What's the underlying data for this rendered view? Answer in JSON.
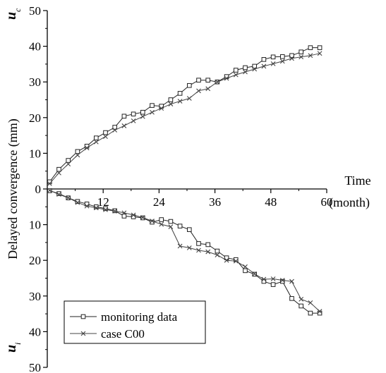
{
  "chart_data": {
    "type": "line",
    "ylabel": "Delayed convergence (mm)",
    "xlabel_line1": "Time",
    "xlabel_line2": "(month)",
    "upper_axis_symbol": "u",
    "upper_axis_subscript": "c",
    "lower_axis_symbol": "u",
    "lower_axis_subscript": "i",
    "xlim": [
      0,
      60
    ],
    "x_ticks": [
      12,
      24,
      36,
      48,
      60
    ],
    "x_tick_labels": [
      "12",
      "24",
      "36",
      "48",
      "60"
    ],
    "y_upper_ticks": [
      0,
      10,
      20,
      30,
      40,
      50
    ],
    "y_upper_labels": [
      "0",
      "10",
      "20",
      "30",
      "40",
      "50"
    ],
    "y_lower_ticks": [
      10,
      20,
      30,
      40,
      50
    ],
    "y_lower_labels": [
      "10",
      "20",
      "30",
      "40",
      "50"
    ],
    "legend_position": "bottom-left",
    "series": [
      {
        "name": "monitoring data",
        "panel": "upper",
        "marker": "square",
        "x": [
          0.5,
          2.5,
          4.5,
          6.5,
          8.5,
          10.5,
          12.5,
          14.5,
          16.5,
          18.5,
          20.5,
          22.5,
          24.5,
          26.5,
          28.5,
          30.5,
          32.5,
          34.5,
          36.5,
          38.5,
          40.5,
          42.5,
          44.5,
          46.5,
          48.5,
          50.5,
          52.5,
          54.5,
          56.5,
          58.5
        ],
        "values": [
          2,
          5.5,
          8,
          10.5,
          12,
          14.3,
          15.8,
          17.3,
          20.4,
          21,
          21.5,
          23.4,
          23.2,
          25,
          26.8,
          29,
          30.5,
          30.5,
          30,
          31.5,
          33.3,
          34,
          34.4,
          36.3,
          37,
          37.1,
          37.4,
          38.4,
          39.6,
          39.6
        ]
      },
      {
        "name": "case C00",
        "panel": "upper",
        "marker": "x",
        "x": [
          0.5,
          2.5,
          4.5,
          6.5,
          8.5,
          10.5,
          12.5,
          14.5,
          16.5,
          18.5,
          20.5,
          22.5,
          24.5,
          26.5,
          28.5,
          30.5,
          32.5,
          34.5,
          36.5,
          38.5,
          40.5,
          42.5,
          44.5,
          46.5,
          48.5,
          50.5,
          52.5,
          54.5,
          56.5,
          58.5
        ],
        "values": [
          1.5,
          4.5,
          7,
          9.5,
          11.5,
          13.2,
          14.7,
          16.5,
          17.7,
          19.1,
          20.3,
          21.5,
          22.6,
          23.8,
          24.6,
          25.4,
          27.5,
          28.1,
          30,
          31,
          32,
          32.8,
          33.6,
          34.4,
          35.1,
          35.8,
          36.6,
          37,
          37.4,
          38
        ]
      },
      {
        "name": "monitoring data",
        "panel": "lower",
        "marker": "square",
        "x": [
          0.5,
          2.5,
          4.5,
          6.5,
          8.5,
          10.5,
          12.5,
          14.5,
          16.5,
          18.5,
          20.5,
          22.5,
          24.5,
          26.5,
          28.5,
          30.5,
          32.5,
          34.5,
          36.5,
          38.5,
          40.5,
          42.5,
          44.5,
          46.5,
          48.5,
          50.5,
          52.5,
          54.5,
          56.5,
          58.5
        ],
        "values": [
          0.5,
          1.3,
          2.5,
          3.5,
          4.2,
          5,
          5.5,
          6.1,
          7.6,
          7.8,
          8.1,
          9.3,
          8.6,
          9.1,
          10.4,
          11.4,
          15.3,
          15.6,
          17.4,
          19.3,
          19.8,
          22.9,
          23.9,
          25.9,
          26.8,
          25.9,
          30.7,
          32.8,
          34.8,
          34.8
        ]
      },
      {
        "name": "case C00",
        "panel": "lower",
        "marker": "x",
        "x": [
          0.5,
          2.5,
          4.5,
          6.5,
          8.5,
          10.5,
          12.5,
          14.5,
          16.5,
          18.5,
          20.5,
          22.5,
          24.5,
          26.5,
          28.5,
          30.5,
          32.5,
          34.5,
          36.5,
          38.5,
          40.5,
          42.5,
          44.5,
          46.5,
          48.5,
          50.5,
          52.5,
          54.5,
          56.5,
          58.5
        ],
        "values": [
          0.4,
          1.5,
          2.5,
          3.8,
          4.8,
          5.3,
          5.8,
          6.2,
          6.7,
          7.3,
          8,
          9,
          9.9,
          10.6,
          16,
          16.5,
          17.2,
          17.6,
          18.5,
          20,
          20.2,
          21.8,
          23.8,
          25.3,
          25.2,
          25.6,
          25.9,
          30.9,
          31.9,
          34.3
        ]
      }
    ]
  },
  "colors": {
    "monitoring_data": "#222222",
    "case_c00": "#444444",
    "axis": "#000000"
  }
}
